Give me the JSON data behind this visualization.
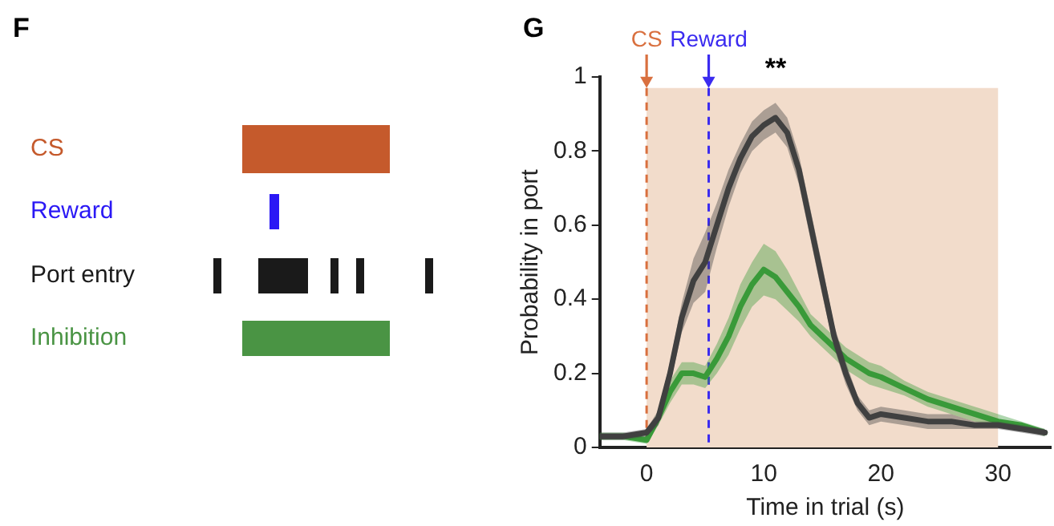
{
  "chart_data": [
    {
      "type": "other",
      "title": "F",
      "annotations": [
        "CS",
        "Reward",
        "Port entry",
        "Inhibition"
      ]
    },
    {
      "type": "line",
      "title": "G",
      "xlabel": "Time in trial (s)",
      "ylabel": "Probability in port",
      "xlim": [
        -4,
        34.5
      ],
      "ylim": [
        0,
        1
      ],
      "xticks": [
        0,
        10,
        20,
        30
      ],
      "yticks": [
        0,
        0.2,
        0.4,
        0.6,
        0.8,
        1
      ],
      "grid": false,
      "legend": false,
      "marker": "none",
      "line_style": "solid",
      "x": [
        -4,
        -2,
        0,
        1,
        2,
        3,
        4,
        5,
        6,
        7,
        8,
        9,
        10,
        11,
        12,
        13,
        14,
        15,
        16,
        17,
        18,
        19,
        20,
        22,
        24,
        26,
        28,
        30,
        32,
        34
      ],
      "series": [
        {
          "color": "#404040",
          "values": [
            0.03,
            0.03,
            0.04,
            0.08,
            0.2,
            0.35,
            0.45,
            0.5,
            0.6,
            0.7,
            0.78,
            0.84,
            0.87,
            0.89,
            0.85,
            0.75,
            0.6,
            0.45,
            0.3,
            0.2,
            0.12,
            0.08,
            0.09,
            0.08,
            0.07,
            0.07,
            0.06,
            0.06,
            0.05,
            0.04
          ],
          "lower": [
            0.02,
            0.02,
            0.03,
            0.06,
            0.17,
            0.31,
            0.39,
            0.42,
            0.54,
            0.65,
            0.74,
            0.8,
            0.83,
            0.85,
            0.81,
            0.71,
            0.56,
            0.41,
            0.27,
            0.17,
            0.1,
            0.06,
            0.07,
            0.06,
            0.05,
            0.05,
            0.05,
            0.05,
            0.04,
            0.03
          ],
          "upper": [
            0.04,
            0.04,
            0.05,
            0.1,
            0.23,
            0.39,
            0.51,
            0.58,
            0.66,
            0.75,
            0.82,
            0.88,
            0.91,
            0.93,
            0.89,
            0.79,
            0.64,
            0.49,
            0.33,
            0.23,
            0.14,
            0.1,
            0.11,
            0.1,
            0.09,
            0.09,
            0.07,
            0.07,
            0.06,
            0.05
          ]
        },
        {
          "color": "#3a9a3a",
          "values": [
            0.03,
            0.03,
            0.02,
            0.08,
            0.15,
            0.2,
            0.2,
            0.19,
            0.24,
            0.3,
            0.38,
            0.44,
            0.48,
            0.46,
            0.42,
            0.38,
            0.33,
            0.3,
            0.27,
            0.24,
            0.22,
            0.2,
            0.19,
            0.16,
            0.13,
            0.11,
            0.09,
            0.07,
            0.06,
            0.04
          ],
          "lower": [
            0.02,
            0.02,
            0.01,
            0.06,
            0.12,
            0.17,
            0.17,
            0.16,
            0.2,
            0.25,
            0.32,
            0.38,
            0.41,
            0.4,
            0.37,
            0.34,
            0.3,
            0.27,
            0.24,
            0.21,
            0.19,
            0.17,
            0.16,
            0.14,
            0.11,
            0.09,
            0.07,
            0.06,
            0.05,
            0.03
          ],
          "upper": [
            0.04,
            0.04,
            0.03,
            0.1,
            0.18,
            0.23,
            0.23,
            0.22,
            0.28,
            0.35,
            0.44,
            0.5,
            0.55,
            0.53,
            0.48,
            0.42,
            0.36,
            0.33,
            0.3,
            0.27,
            0.25,
            0.23,
            0.22,
            0.18,
            0.15,
            0.13,
            0.11,
            0.09,
            0.07,
            0.05
          ]
        }
      ],
      "bands": [
        {
          "axis": "x",
          "from": 0,
          "to": 30,
          "color": "#f2dccb"
        }
      ],
      "ref_lines": [
        {
          "axis": "x",
          "value": 0,
          "label": "CS",
          "color": "#d9703f",
          "line_style": "dashed"
        },
        {
          "axis": "x",
          "value": 5.3,
          "label": "Reward",
          "color": "#3b2bf0",
          "line_style": "dashed"
        }
      ],
      "annotations": [
        "**"
      ]
    }
  ]
}
